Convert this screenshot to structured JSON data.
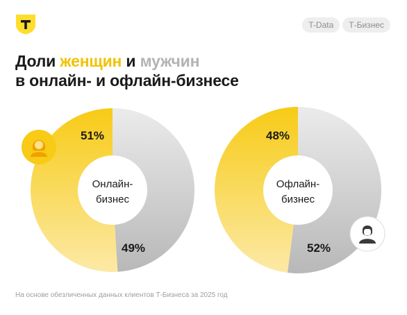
{
  "header": {
    "tags": [
      "T-Data",
      "Т-Бизнес"
    ]
  },
  "title": {
    "part1": "Доли ",
    "women": "женщин",
    "part2": " и ",
    "men": "мужчин",
    "line2": "в онлайн- и офлайн-бизнесе"
  },
  "icons": {
    "logo": "tbank-shield-logo",
    "women": "woman-avatar-icon",
    "men": "man-avatar-icon"
  },
  "colors": {
    "women": "#f7cb16",
    "men": "#c4c4c4",
    "accent": "#ffdd2d"
  },
  "chart_data": [
    {
      "type": "pie",
      "center_label": [
        "Онлайн-",
        "бизнес"
      ],
      "slices": [
        {
          "name": "женщины",
          "value": 51,
          "label": "51%"
        },
        {
          "name": "мужчины",
          "value": 49,
          "label": "49%"
        }
      ]
    },
    {
      "type": "pie",
      "center_label": [
        "Офлайн-",
        "бизнес"
      ],
      "slices": [
        {
          "name": "женщины",
          "value": 48,
          "label": "48%"
        },
        {
          "name": "мужчины",
          "value": 52,
          "label": "52%"
        }
      ]
    }
  ],
  "footnote": "На основе обезличенных данных клиентов Т-Бизнеса за 2025 год"
}
